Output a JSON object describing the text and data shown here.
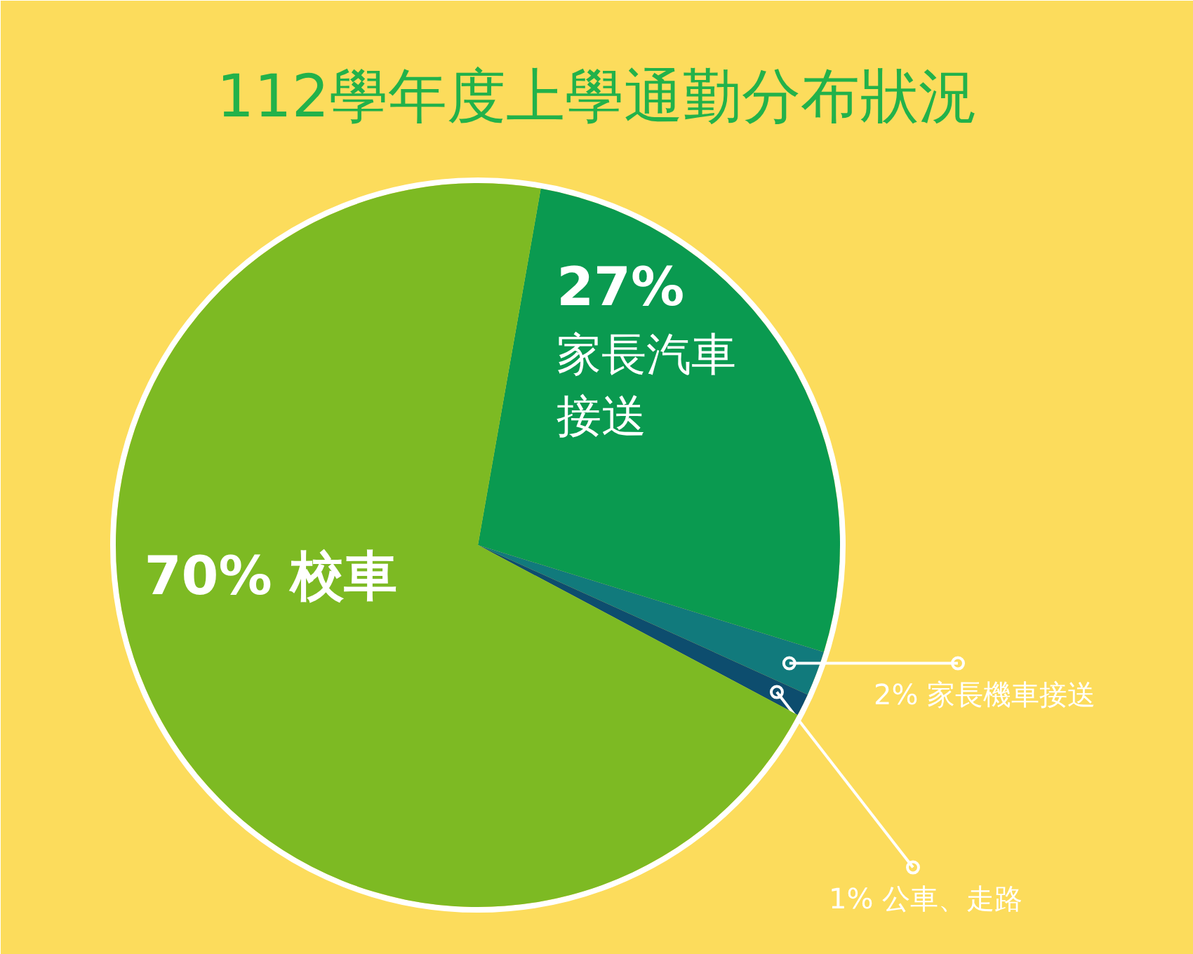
{
  "chart_data": {
    "type": "pie",
    "title": "112學年度上學通勤分布狀況",
    "categories": [
      "家長汽車接送",
      "家長機車接送",
      "公車、走路",
      "校車"
    ],
    "values": [
      27,
      2,
      1,
      70
    ],
    "colors": [
      "#0a9a50",
      "#117a7c",
      "#0d4d6e",
      "#7dba23"
    ],
    "value_labels": [
      "27%",
      "2%",
      "1%",
      "70%"
    ]
  }
}
